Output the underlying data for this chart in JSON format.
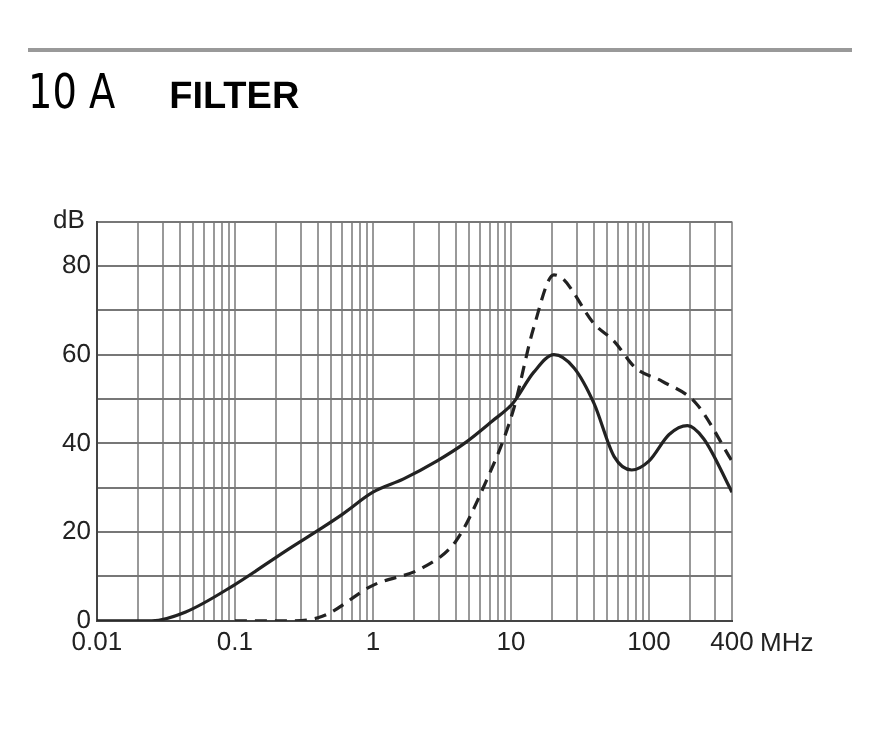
{
  "chart_data": {
    "type": "line",
    "title": "10 A",
    "subtitle": "FILTER",
    "xlabel": "MHz",
    "ylabel": "dB",
    "log": "x",
    "grid": true,
    "legend": false,
    "marker": "none",
    "xlim": [
      0.01,
      400
    ],
    "ylim": [
      0,
      90
    ],
    "xticks": [
      0.01,
      {
        "value": 0.02,
        "label": null
      },
      {
        "value": 0.03,
        "label": null
      },
      {
        "value": 0.04,
        "label": null
      },
      {
        "value": 0.05,
        "label": null
      },
      {
        "value": 0.06,
        "label": null
      },
      {
        "value": 0.07,
        "label": null
      },
      {
        "value": 0.08,
        "label": null
      },
      {
        "value": 0.09,
        "label": null
      },
      0.1,
      {
        "value": 0.2,
        "label": null
      },
      {
        "value": 0.3,
        "label": null
      },
      {
        "value": 0.4,
        "label": null
      },
      {
        "value": 0.5,
        "label": null
      },
      {
        "value": 0.6,
        "label": null
      },
      {
        "value": 0.7,
        "label": null
      },
      {
        "value": 0.8,
        "label": null
      },
      {
        "value": 0.9,
        "label": null
      },
      1,
      {
        "value": 2,
        "label": null
      },
      {
        "value": 3,
        "label": null
      },
      {
        "value": 4,
        "label": null
      },
      {
        "value": 5,
        "label": null
      },
      {
        "value": 6,
        "label": null
      },
      {
        "value": 7,
        "label": null
      },
      {
        "value": 8,
        "label": null
      },
      {
        "value": 9,
        "label": null
      },
      10,
      {
        "value": 20,
        "label": null
      },
      {
        "value": 30,
        "label": null
      },
      {
        "value": 40,
        "label": null
      },
      {
        "value": 50,
        "label": null
      },
      {
        "value": 60,
        "label": null
      },
      {
        "value": 70,
        "label": null
      },
      {
        "value": 80,
        "label": null
      },
      {
        "value": 90,
        "label": null
      },
      100,
      {
        "value": 200,
        "label": null
      },
      {
        "value": 300,
        "label": null
      },
      400
    ],
    "yticks": [
      0,
      {
        "value": 10,
        "label": null
      },
      20,
      {
        "value": 30,
        "label": null
      },
      40,
      {
        "value": 50,
        "label": null
      },
      60,
      {
        "value": 70,
        "label": null
      },
      80,
      {
        "value": 90,
        "label": null
      }
    ],
    "series": [
      {
        "color": "#222222",
        "line_style": "solid",
        "x": [
          0.01,
          0.025,
          0.044,
          0.098,
          0.24,
          0.43,
          0.6,
          1,
          1.67,
          2.9,
          4.6,
          7.3,
          10.3,
          14.6,
          20.5,
          28.7,
          40,
          56,
          75,
          100,
          140,
          190,
          250,
          400
        ],
        "values": [
          0,
          0,
          2,
          8,
          16,
          21,
          24,
          29,
          32,
          36,
          40,
          45,
          49,
          56,
          60,
          57,
          49,
          37,
          34,
          36,
          42,
          44,
          41,
          29
        ]
      },
      {
        "color": "#222222",
        "line_style": "dashed",
        "x": [
          0.1,
          0.24,
          0.43,
          1,
          2.3,
          4,
          6.3,
          10.3,
          14.6,
          20.5,
          24,
          40,
          56,
          80,
          125,
          220,
          400
        ],
        "values": [
          0,
          0,
          1,
          8,
          12,
          18,
          30,
          47,
          66,
          78,
          77,
          67,
          63,
          57,
          54,
          49,
          36
        ]
      }
    ]
  }
}
